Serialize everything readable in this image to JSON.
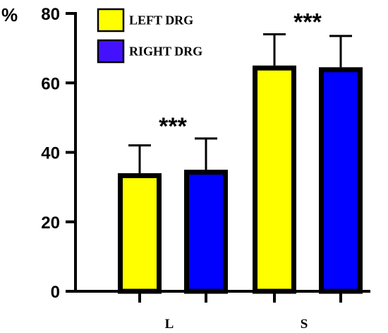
{
  "chart_data": {
    "type": "bar",
    "title": "",
    "xlabel": "",
    "ylabel": "%",
    "ylim": [
      0,
      80
    ],
    "yticks": [
      0,
      20,
      40,
      60,
      80
    ],
    "categories": [
      "L",
      "S"
    ],
    "series": [
      {
        "name": "LEFT DRG",
        "color": "#ffff00",
        "values": [
          34,
          65
        ],
        "errors": [
          8,
          9
        ]
      },
      {
        "name": "RIGHT DRG",
        "color": "#0000ff",
        "values": [
          35,
          64.5
        ],
        "errors": [
          9,
          9
        ]
      }
    ],
    "legend_swatches": [
      "#ffff00",
      "#4411ff"
    ],
    "legend_position": "top-left",
    "annotations": [
      "***",
      "***"
    ],
    "grid": false
  }
}
